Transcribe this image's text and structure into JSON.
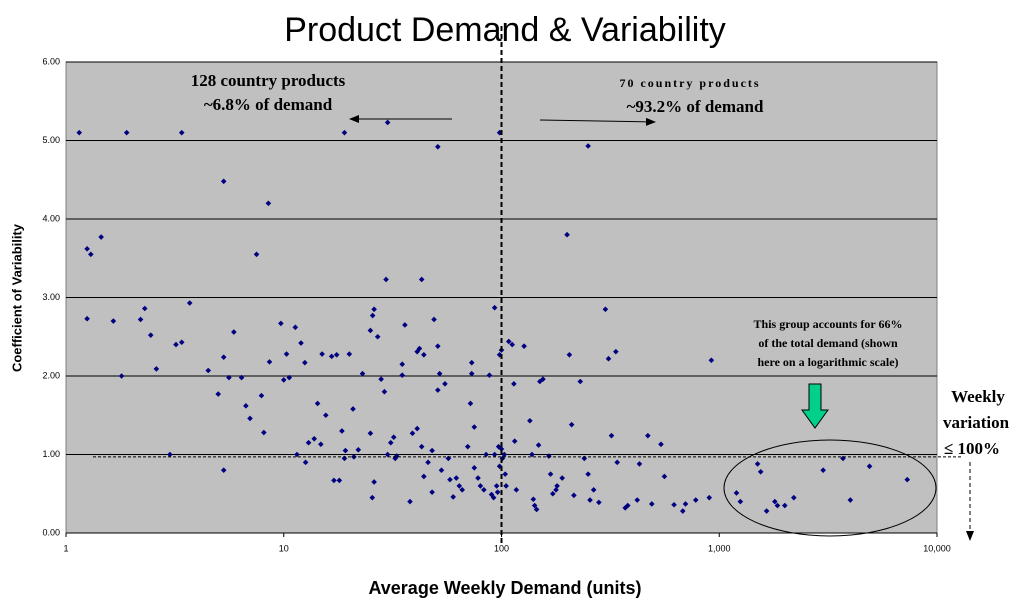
{
  "chart_data": {
    "type": "scatter",
    "title": "Product Demand & Variability",
    "x_label": "Average Weekly Demand (units)",
    "y_label": "Coefficient of Variability",
    "xscale": "log",
    "xlim": [
      1,
      10000
    ],
    "ylim": [
      0,
      6
    ],
    "xticks": [
      1,
      10,
      100,
      {
        "value": 1000,
        "label": "1,000"
      },
      {
        "value": 10000,
        "label": "10,000"
      }
    ],
    "yticks": [
      {
        "value": 0,
        "label": "0.00"
      },
      {
        "value": 1,
        "label": "1.00"
      },
      {
        "value": 2,
        "label": "2.00"
      },
      {
        "value": 3,
        "label": "3.00"
      },
      {
        "value": 4,
        "label": "4.00"
      },
      {
        "value": 5,
        "label": "5.00"
      },
      {
        "value": 6,
        "label": "6.00"
      }
    ],
    "grid": true,
    "color": "#000080",
    "reference_lines": {
      "x": 100,
      "y": 0.97
    },
    "annotations": [
      "128 country products",
      "~6.8% of demand",
      "70 country products",
      "~93.2% of demand",
      "This group accounts for 66%",
      "of the total demand (shown",
      "here on a logarithmic scale)",
      "Weekly",
      "variation",
      "≤ 100%"
    ],
    "x": [
      1.15,
      1.9,
      3.4,
      19,
      30,
      51,
      98,
      250,
      1.25,
      1.3,
      1.45,
      1.25,
      5.3,
      8.5,
      7.5,
      3.7,
      1.65,
      2.2,
      2.3,
      2.45,
      1.8,
      2.6,
      3.2,
      3.4,
      3.0,
      4.5,
      5.3,
      5.6,
      5.9,
      6.4,
      5.0,
      5.3,
      6.7,
      7.0,
      7.9,
      8.1,
      8.6,
      9.7,
      10,
      10.3,
      10.6,
      11.3,
      12,
      12.5,
      11.5,
      12.6,
      13,
      13.8,
      14.3,
      15,
      15.6,
      14.8,
      16.6,
      17.5,
      17,
      18,
      18.5,
      20,
      20.8,
      19.2,
      19,
      21,
      22,
      23,
      25,
      26,
      25.6,
      27,
      25,
      25.5,
      26,
      28,
      29.5,
      29,
      30,
      31,
      32,
      32.5,
      33,
      35,
      35,
      36,
      38,
      39,
      41,
      42,
      41,
      43,
      43,
      44,
      44,
      46,
      48,
      48,
      49,
      51,
      52,
      51,
      55,
      53,
      57,
      58,
      60,
      62,
      64,
      66,
      70,
      72,
      73,
      73,
      75,
      75,
      78,
      80,
      83,
      85,
      88,
      90,
      92,
      93,
      93,
      95,
      96,
      97,
      98,
      98,
      100,
      100,
      101,
      103,
      104,
      105,
      108,
      112,
      114,
      115,
      117,
      127,
      135,
      138,
      140,
      142,
      145,
      148,
      150,
      155,
      165,
      168,
      172,
      178,
      180,
      190,
      200,
      205,
      210,
      215,
      230,
      240,
      250,
      255,
      265,
      280,
      300,
      310,
      320,
      335,
      340,
      370,
      380,
      420,
      430,
      470,
      490,
      540,
      560,
      620,
      680,
      700,
      780,
      900,
      920,
      1200,
      1250,
      1500,
      1550,
      1650,
      1800,
      1850,
      2000,
      2200,
      3000,
      3700,
      4000,
      4900,
      7300
    ],
    "values": [
      5.1,
      5.1,
      5.1,
      5.1,
      5.23,
      4.92,
      5.1,
      4.93,
      3.62,
      3.55,
      3.77,
      2.73,
      4.48,
      4.2,
      3.55,
      2.93,
      2.7,
      2.72,
      2.86,
      2.52,
      2.0,
      2.09,
      2.4,
      2.43,
      1.0,
      2.07,
      2.24,
      1.98,
      2.56,
      1.98,
      1.77,
      0.8,
      1.62,
      1.46,
      1.75,
      1.28,
      2.18,
      2.67,
      1.95,
      2.28,
      1.98,
      2.62,
      2.42,
      2.17,
      1.0,
      0.9,
      1.15,
      1.2,
      1.65,
      2.28,
      1.5,
      1.13,
      2.25,
      2.27,
      0.67,
      0.67,
      1.3,
      2.28,
      1.58,
      1.05,
      0.95,
      0.97,
      1.06,
      2.03,
      2.58,
      2.85,
      2.77,
      2.5,
      1.27,
      0.45,
      0.65,
      1.96,
      3.23,
      1.8,
      1.0,
      1.15,
      1.22,
      0.95,
      0.98,
      2.01,
      2.15,
      2.65,
      0.4,
      1.27,
      2.31,
      2.35,
      1.33,
      3.23,
      1.1,
      2.27,
      0.72,
      0.9,
      1.05,
      0.52,
      2.72,
      2.38,
      2.03,
      1.82,
      1.9,
      0.8,
      0.95,
      0.68,
      0.46,
      0.7,
      0.6,
      0.55,
      1.1,
      1.65,
      2.03,
      2.17,
      1.35,
      0.83,
      0.7,
      0.6,
      0.55,
      1.0,
      2.01,
      0.49,
      0.45,
      2.87,
      1.0,
      0.6,
      0.52,
      1.1,
      2.27,
      0.85,
      2.33,
      1.07,
      0.95,
      1.0,
      0.75,
      0.6,
      2.44,
      2.4,
      1.9,
      1.17,
      0.55,
      2.38,
      1.43,
      1.0,
      0.43,
      0.35,
      0.3,
      1.12,
      1.93,
      1.96,
      0.98,
      0.75,
      0.5,
      0.55,
      0.6,
      0.7,
      3.8,
      2.27,
      1.38,
      0.48,
      1.93,
      0.95,
      0.75,
      0.42,
      0.55,
      0.39,
      2.85,
      2.22,
      1.24,
      2.31,
      0.9,
      0.32,
      0.35,
      0.42,
      0.88,
      1.24,
      0.37,
      1.13,
      0.72,
      0.36,
      0.28,
      0.37,
      0.42,
      0.45,
      2.2,
      0.51,
      0.4,
      0.88,
      0.78,
      0.28,
      0.4,
      0.35,
      0.35,
      0.45,
      0.8,
      0.95,
      0.42,
      0.85,
      0.68
    ]
  }
}
